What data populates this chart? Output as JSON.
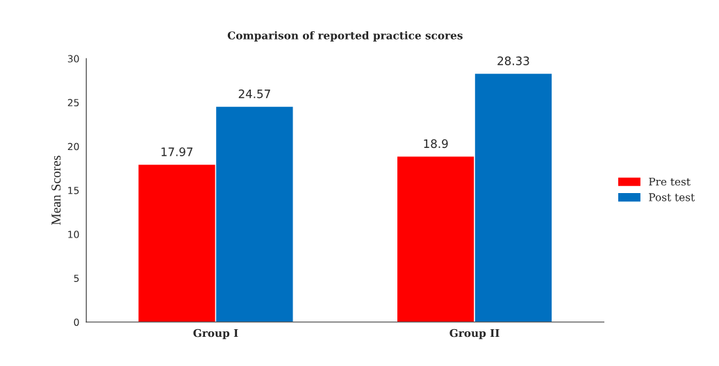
{
  "chart_data": {
    "type": "bar",
    "title": "Comparison of reported practice scores",
    "ylabel": "Mean Scores",
    "categories": [
      "Group I",
      "Group II"
    ],
    "series": [
      {
        "name": "Pre test",
        "color": "#ff0000",
        "values": [
          17.97,
          18.9
        ]
      },
      {
        "name": "Post test",
        "color": "#0070c0",
        "values": [
          24.57,
          28.33
        ]
      }
    ],
    "ylim": [
      0,
      30
    ],
    "yticks": [
      0,
      5,
      10,
      15,
      20,
      25,
      30
    ],
    "grid": false,
    "legend": "right",
    "data_labels": true
  }
}
